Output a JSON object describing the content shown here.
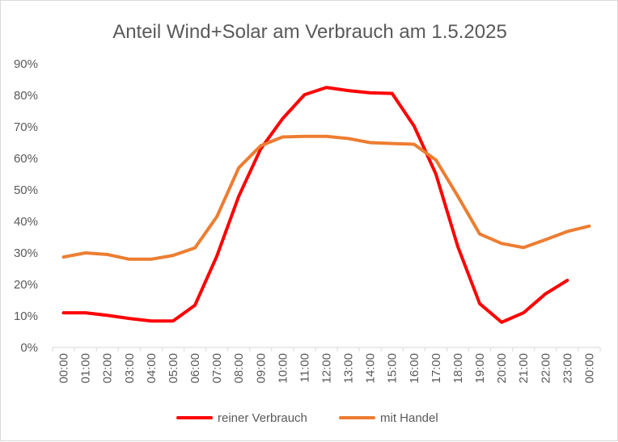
{
  "chart_data": {
    "type": "line",
    "title": "Anteil Wind+Solar am Verbrauch am 1.5.2025",
    "xlabel": "",
    "ylabel": "",
    "categories": [
      "00:00",
      "01:00",
      "02:00",
      "03:00",
      "04:00",
      "05:00",
      "06:00",
      "07:00",
      "08:00",
      "09:00",
      "10:00",
      "11:00",
      "12:00",
      "13:00",
      "14:00",
      "15:00",
      "16:00",
      "17:00",
      "18:00",
      "19:00",
      "20:00",
      "21:00",
      "22:00",
      "23:00",
      "00:00"
    ],
    "ylim": [
      0,
      90
    ],
    "yticks": [
      0,
      10,
      20,
      30,
      40,
      50,
      60,
      70,
      80,
      90
    ],
    "ytick_labels": [
      "0%",
      "10%",
      "20%",
      "30%",
      "40%",
      "50%",
      "60%",
      "70%",
      "80%",
      "90%"
    ],
    "grid": false,
    "legend_position": "bottom",
    "series": [
      {
        "name": "reiner Verbrauch",
        "color": "#ff0000",
        "values": [
          11,
          11,
          10.2,
          9.2,
          8.4,
          8.4,
          13.4,
          29,
          48,
          63,
          72.6,
          80.2,
          82.5,
          81.5,
          80.8,
          80.6,
          70.3,
          55,
          32,
          13.9,
          8,
          11,
          17,
          21.3,
          null
        ]
      },
      {
        "name": "mit Handel",
        "color": "#ed7d31",
        "values": [
          28.7,
          30,
          29.5,
          28,
          28,
          29.2,
          31.6,
          41.5,
          57,
          64,
          66.8,
          67,
          67,
          66.3,
          65,
          64.7,
          64.5,
          59.5,
          48,
          36,
          33,
          31.7,
          34.2,
          36.8,
          38.5
        ]
      }
    ]
  }
}
